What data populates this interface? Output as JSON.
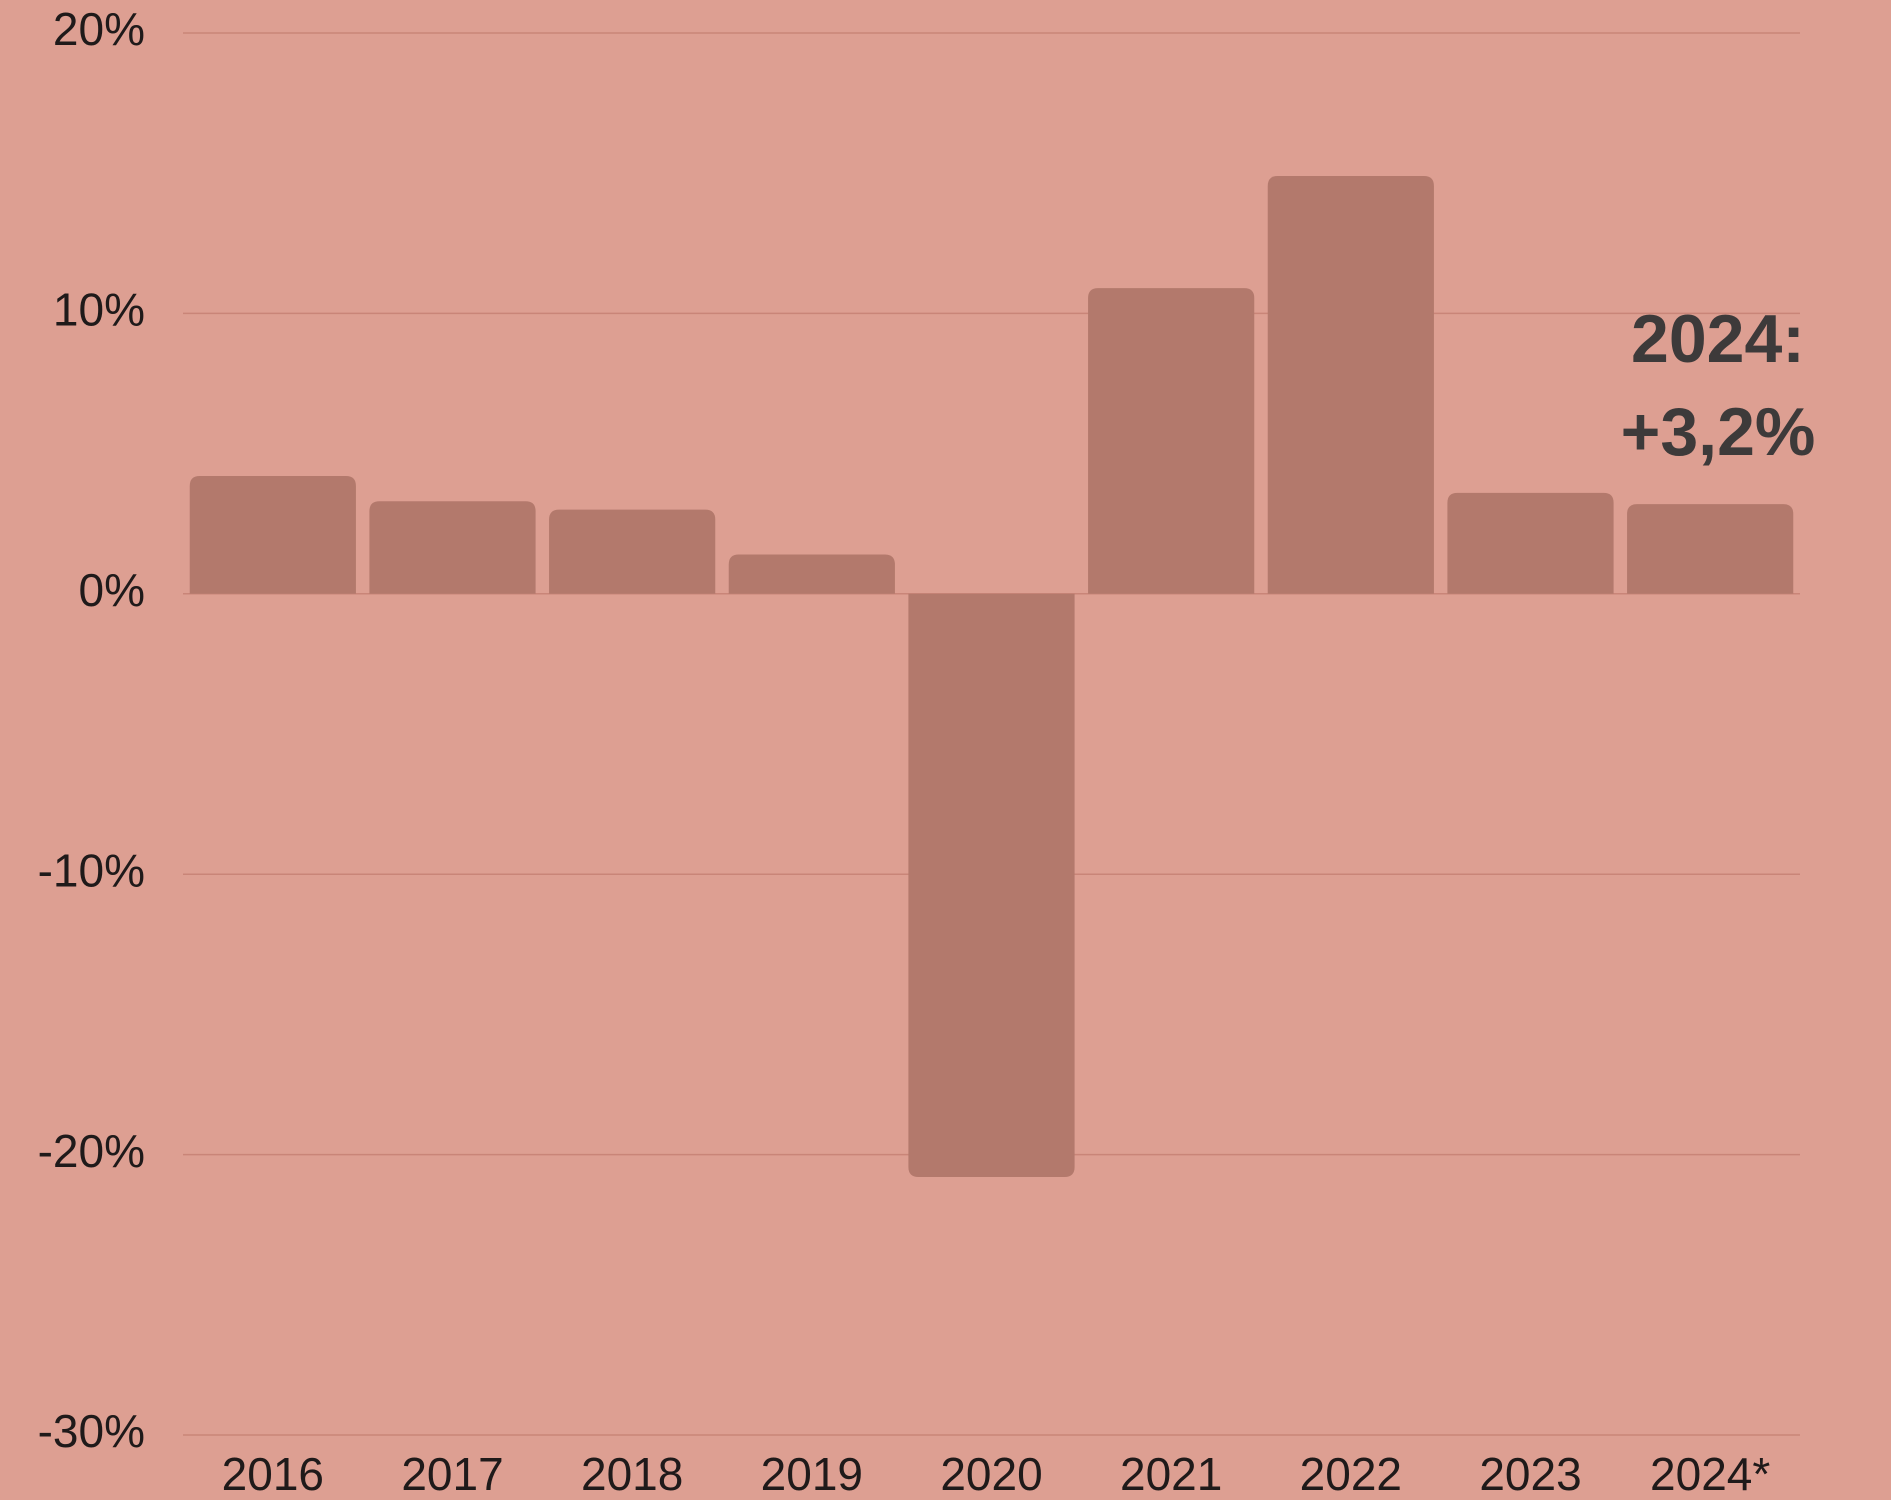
{
  "chart_data": {
    "type": "bar",
    "categories": [
      "2016",
      "2017",
      "2018",
      "2019",
      "2020",
      "2021",
      "2022",
      "2023",
      "2024*"
    ],
    "values": [
      4.2,
      3.3,
      3.0,
      1.4,
      -20.8,
      10.9,
      14.9,
      3.6,
      3.2
    ],
    "color": "#b3796c",
    "ylim": [
      -30,
      20
    ],
    "yticks": [
      {
        "value": -30,
        "label": "-30%"
      },
      {
        "value": -20,
        "label": "-20%"
      },
      {
        "value": -10,
        "label": "-10%"
      },
      {
        "value": 0,
        "label": "0%"
      },
      {
        "value": 10,
        "label": "10%"
      },
      {
        "value": 20,
        "label": "20%"
      }
    ],
    "grid": true,
    "annotation": [
      "2024:",
      "+3,2%"
    ]
  }
}
